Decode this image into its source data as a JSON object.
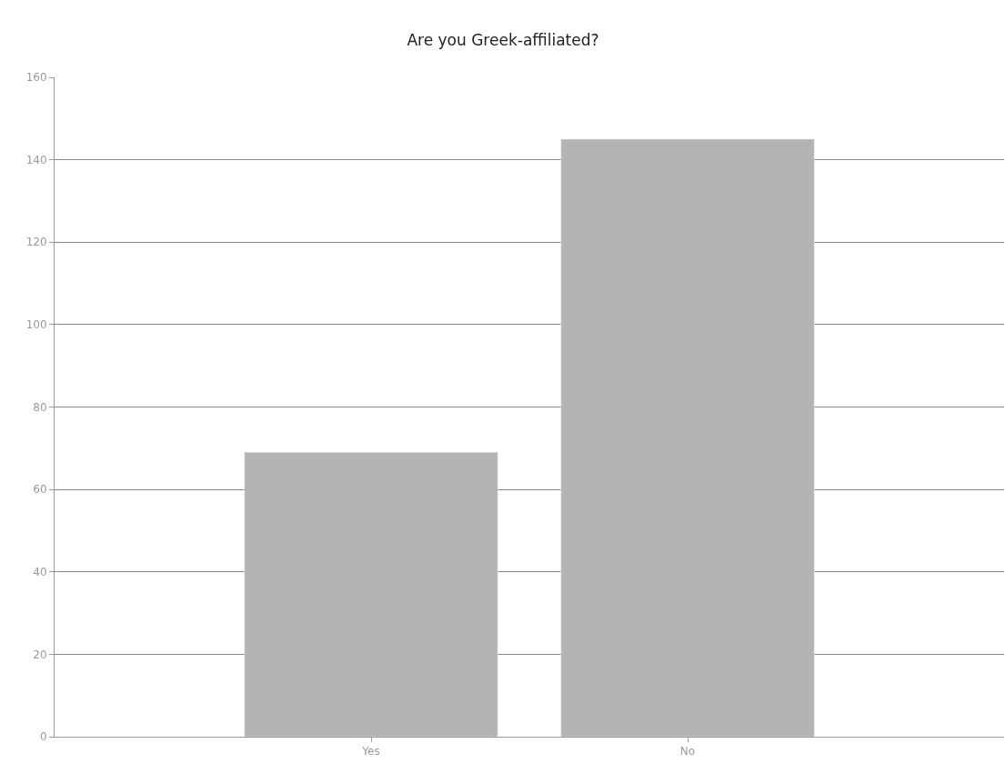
{
  "chart_data": {
    "type": "bar",
    "title": "Are you Greek-affiliated?",
    "categories": [
      "Yes",
      "No"
    ],
    "values": [
      69,
      145
    ],
    "color": "#b4b4b4",
    "ylim": [
      0,
      160
    ],
    "yticks": [
      0,
      20,
      40,
      60,
      80,
      100,
      120,
      140,
      160
    ],
    "grid": "y",
    "legend": false
  }
}
